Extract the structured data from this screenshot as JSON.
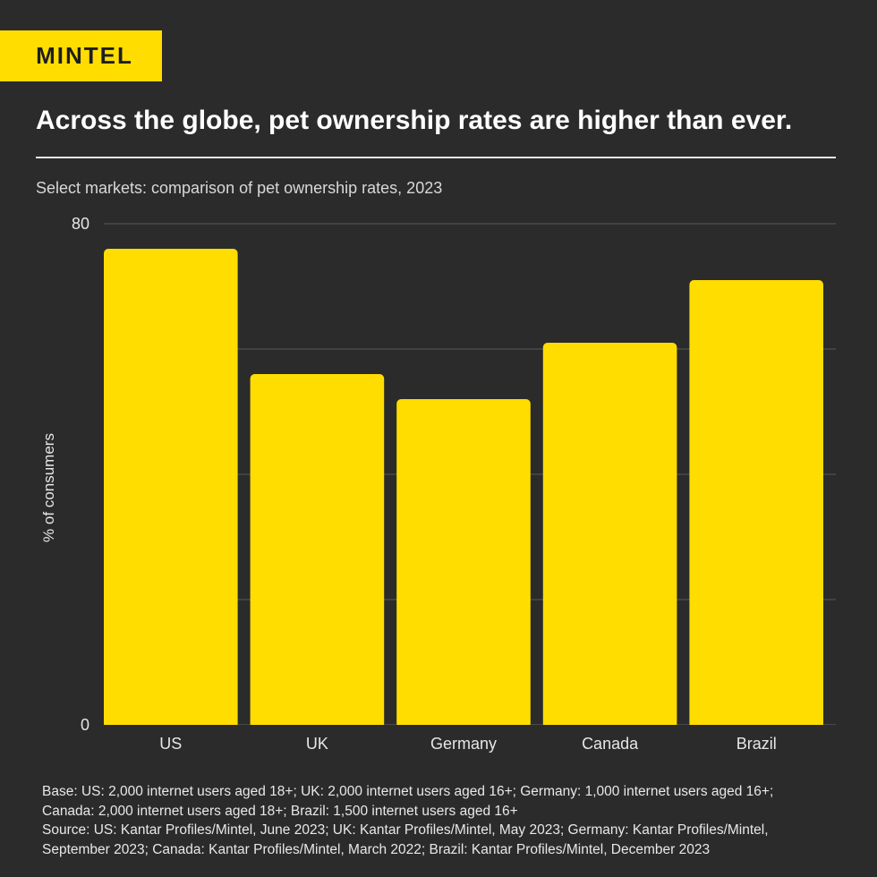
{
  "brand": {
    "logo_text": "MINTEL"
  },
  "header": {
    "title": "Across the globe, pet ownership rates are higher than ever.",
    "subtitle": "Select markets: comparison of pet ownership rates, 2023"
  },
  "chart_data": {
    "type": "bar",
    "categories": [
      "US",
      "UK",
      "Germany",
      "Canada",
      "Brazil"
    ],
    "values": [
      76,
      56,
      52,
      61,
      71
    ],
    "ylabel": "% of consumers",
    "xlabel": "",
    "ylim": [
      0,
      80
    ],
    "y_tick_labels": [
      "0",
      "80"
    ],
    "gridlines": [
      20,
      40,
      60,
      80
    ],
    "bar_color": "#FFDD00",
    "grid_color": "#5a5a5a"
  },
  "footnotes": {
    "base_line1": "Base: US: 2,000 internet users aged 18+; UK: 2,000 internet users aged 16+; Germany: 1,000 internet users aged 16+;",
    "base_line2": "Canada: 2,000 internet users aged 18+; Brazil: 1,500 internet users aged 16+",
    "source_line1": "Source: US: Kantar Profiles/Mintel, June 2023; UK: Kantar Profiles/Mintel, May 2023; Germany: Kantar Profiles/Mintel,",
    "source_line2": "September 2023; Canada: Kantar Profiles/Mintel, March 2022; Brazil: Kantar Profiles/Mintel, December 2023"
  }
}
